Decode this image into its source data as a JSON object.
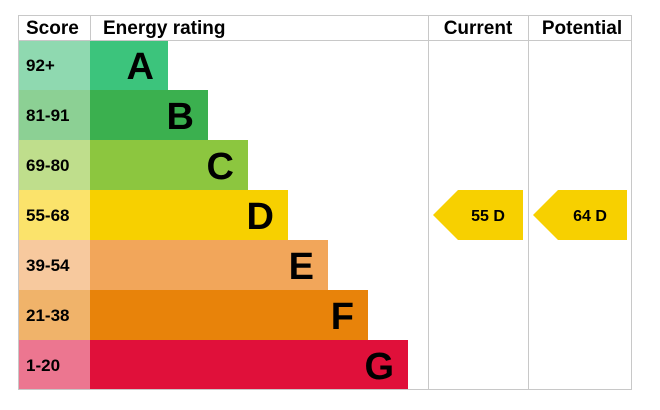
{
  "chart_data": {
    "type": "bar",
    "headers": {
      "score": "Score",
      "energy_rating": "Energy rating",
      "current": "Current",
      "potential": "Potential"
    },
    "bands": [
      {
        "range": "92+",
        "letter": "A",
        "color": "#3cc47c",
        "score_color": "#8fd9b0"
      },
      {
        "range": "81-91",
        "letter": "B",
        "color": "#3bb04f",
        "score_color": "#8cd094"
      },
      {
        "range": "69-80",
        "letter": "C",
        "color": "#8cc63f",
        "score_color": "#bfde8c"
      },
      {
        "range": "55-68",
        "letter": "D",
        "color": "#f7d000",
        "score_color": "#fbe36b"
      },
      {
        "range": "39-54",
        "letter": "E",
        "color": "#f2a65a",
        "score_color": "#f7c99e"
      },
      {
        "range": "21-38",
        "letter": "F",
        "color": "#e8830a",
        "score_color": "#f0b36a"
      },
      {
        "range": "1-20",
        "letter": "G",
        "color": "#e0103a",
        "score_color": "#ec7690"
      }
    ],
    "current": {
      "value": 55,
      "letter": "D",
      "label": "55 D",
      "color": "#f7d000"
    },
    "potential": {
      "value": 64,
      "letter": "D",
      "label": "64 D",
      "color": "#f7d000"
    }
  }
}
